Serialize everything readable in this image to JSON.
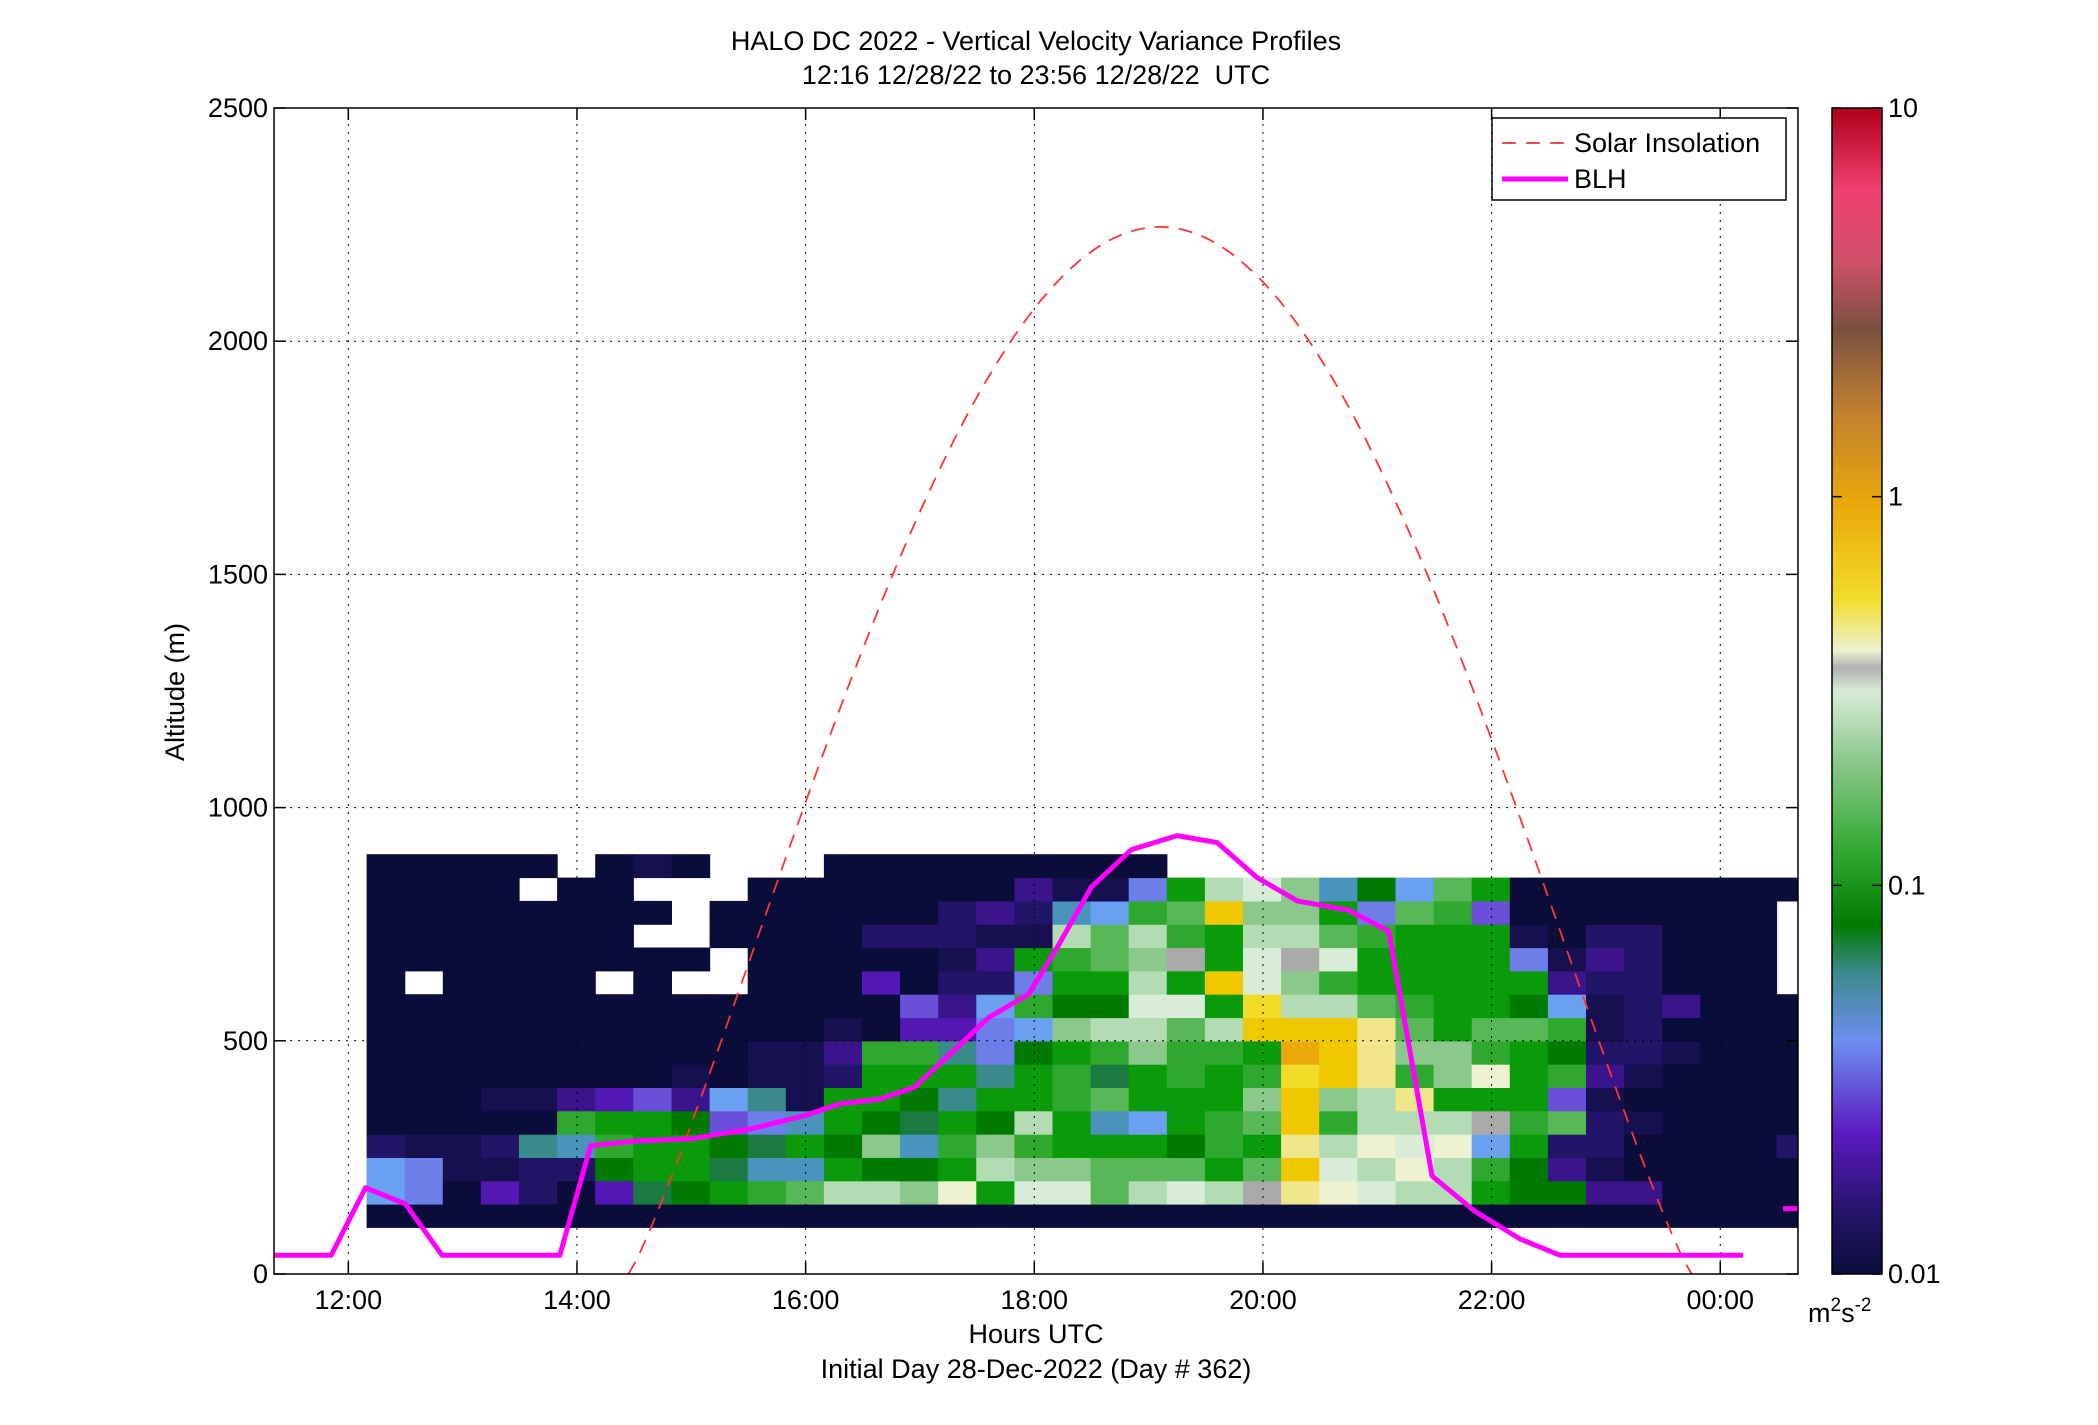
{
  "chart_data": {
    "type": "heatmap",
    "title": "HALO DC 2022 - Vertical Velocity Variance Profiles",
    "subtitle": "12:16 12/28/22 to 23:56 12/28/22  UTC",
    "xlabel": "Hours UTC",
    "xlabel2": "Initial Day 28-Dec-2022 (Day # 362)",
    "ylabel": "Altitude (m)",
    "x_range_hours": [
      11.35,
      24.68
    ],
    "ylim": [
      0,
      2500
    ],
    "x_ticks": [
      {
        "hour": 12,
        "label": "12:00"
      },
      {
        "hour": 14,
        "label": "14:00"
      },
      {
        "hour": 16,
        "label": "16:00"
      },
      {
        "hour": 18,
        "label": "18:00"
      },
      {
        "hour": 20,
        "label": "20:00"
      },
      {
        "hour": 22,
        "label": "22:00"
      },
      {
        "hour": 24,
        "label": "00:00"
      }
    ],
    "y_ticks": [
      {
        "value": 0,
        "label": "0"
      },
      {
        "value": 500,
        "label": "500"
      },
      {
        "value": 1000,
        "label": "1000"
      },
      {
        "value": 1500,
        "label": "1500"
      },
      {
        "value": 2000,
        "label": "2000"
      },
      {
        "value": 2500,
        "label": "2500"
      }
    ],
    "grid": true,
    "legend": {
      "position": "top-right",
      "entries": [
        {
          "name": "Solar Insolation",
          "color": "#ff3333",
          "style": "dashed"
        },
        {
          "name": "BLH",
          "color": "#ff00ff",
          "style": "solid"
        }
      ]
    },
    "colorbar": {
      "scale": "log",
      "min": 0.01,
      "max": 10,
      "ticks": [
        {
          "value": 0.01,
          "label": "0.01"
        },
        {
          "value": 0.1,
          "label": "0.1"
        },
        {
          "value": 1,
          "label": "1"
        },
        {
          "value": 10,
          "label": "10"
        }
      ],
      "unit_label": "m",
      "unit_sup1": "2",
      "unit_mid": "s",
      "unit_sup2": "-2"
    },
    "heatmap": {
      "t0_hour": 12.16,
      "dt_hours": 0.3333,
      "alt0_m": 100,
      "dalt_m": 50,
      "note_codes": "0 = missing, otherwise log10 variance bucket index",
      "palette": {
        "a": "#0a0c3a",
        "b": "#160f50",
        "c": "#221466",
        "d": "#3a148a",
        "e": "#5318b4",
        "f": "#6a50d8",
        "g": "#6e7ee8",
        "h": "#6aa0f0",
        "i": "#4a93bd",
        "j": "#3a8a8a",
        "k": "#1a7a40",
        "l": "#007a00",
        "m": "#0a9a0a",
        "n": "#2ea82e",
        "o": "#58b858",
        "p": "#8cc88c",
        "q": "#b4dcb4",
        "r": "#d8ecd8",
        "s": "#eef2d0",
        "t": "#f0e68c",
        "u": "#f2dc28",
        "v": "#f0c800",
        "w": "#eaa80a",
        "x": "#aaaaaa"
      },
      "rows": [
        "aaaaaaaaaaaaaaaaaaaaaaaaaaaaaaaaaaaaaa",
        "hgaecaeklmnoqqpsmrroqrqxtsrqqmllddaaaa",
        "hgbbcclmmkiimllmqppooomovrqsqnldbaaaaa",
        "cbbcjinmmlkmlpinpnmmmlnmtqsrshmccaaaac",
        "aaaaanmmlfgimlkmlqmihmnovnqqqxnocbaaaaa",
        "aaabbdefdhjbmmljmmnommmpvpqtmmmfbaaaaa",
        "aaaaaaaababbcmmmjmnkmnmnuvtnpsmndbaaaa",
        "aaaaaaaaaabbdnnjglmnpnnmwvtppnmlccbaaa",
        "aaaaaaaaaaaabaeeghpqqoqvvvtomoonbcaaaa",
        "aaaaaaaaaaaaaafdhnllrrmuqqonmmlhbcdaaa",
        "a0aaaa0a00aaaeaccgmmqmvrpnmmmmmdccaaa",
        "aaaaaaaaa0aaaaabdmnopxmrxrmmmmgbdcaaa",
        "aaaaaaa00aaaacccbbqoqnmqqonmmmbaccaaa",
        "aaaaaaaa0aaaaaacdcihnovppmgonfaaaaaaa",
        "aaaa0aa000aaaaaaadbbgmqrpilhomaaaaaaaa",
        "aaaaa0aba000aaaaaaaaa"
      ]
    },
    "blh_m": [
      [
        11.35,
        40
      ],
      [
        11.85,
        40
      ],
      [
        12.15,
        185
      ],
      [
        12.5,
        150
      ],
      [
        12.82,
        40
      ],
      [
        13.85,
        40
      ],
      [
        14.12,
        275
      ],
      [
        14.5,
        285
      ],
      [
        15.0,
        290
      ],
      [
        15.5,
        310
      ],
      [
        16.0,
        340
      ],
      [
        16.3,
        365
      ],
      [
        16.65,
        375
      ],
      [
        16.95,
        400
      ],
      [
        17.3,
        480
      ],
      [
        17.6,
        550
      ],
      [
        17.95,
        600
      ],
      [
        18.2,
        700
      ],
      [
        18.5,
        830
      ],
      [
        18.85,
        910
      ],
      [
        19.25,
        940
      ],
      [
        19.6,
        925
      ],
      [
        19.95,
        850
      ],
      [
        20.3,
        800
      ],
      [
        20.75,
        780
      ],
      [
        21.1,
        735
      ],
      [
        21.48,
        210
      ],
      [
        21.85,
        135
      ],
      [
        22.25,
        75
      ],
      [
        22.6,
        40
      ],
      [
        24.2,
        40
      ]
    ],
    "blh_tail_m": [
      [
        24.55,
        140
      ],
      [
        24.68,
        140
      ]
    ],
    "solar_insolation_rel": {
      "peak_hour": 19.05,
      "start_hour": 14.45,
      "end_hour": 23.75,
      "peak_altitude_equiv_m": 2245,
      "note": "dashed curve drawn in altitude-equivalent units"
    }
  }
}
